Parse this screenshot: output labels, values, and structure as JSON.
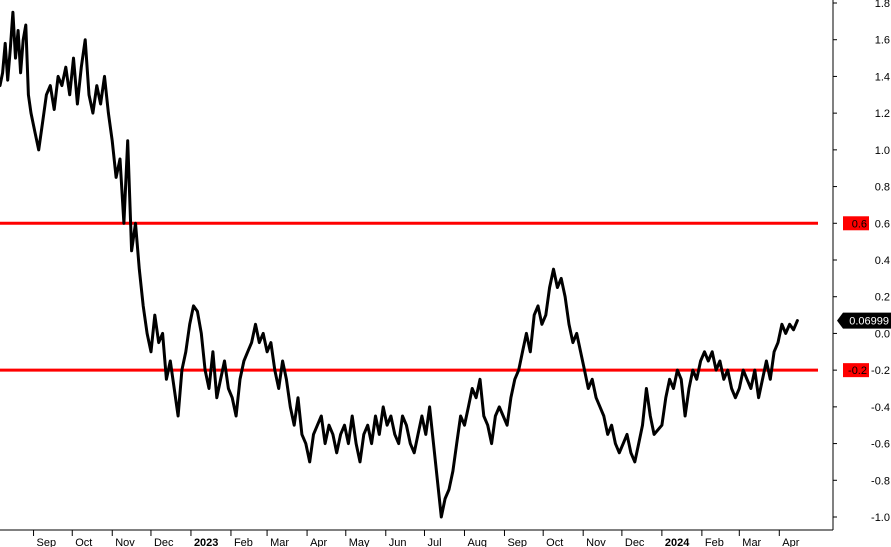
{
  "chart_data": {
    "type": "line",
    "title": "",
    "xlabel": "",
    "ylabel": "",
    "ylim": [
      -1.05,
      1.8
    ],
    "y_ticks": [
      "1.8",
      "1.6",
      "1.4",
      "1.2",
      "1.0",
      "0.8",
      "0.6",
      "0.4",
      "0.2",
      "0.0",
      "-0.2",
      "-0.4",
      "-0.6",
      "-0.8",
      "-1.0"
    ],
    "x_ticks": [
      {
        "label": "Sep",
        "date": "2022-09-01"
      },
      {
        "label": "Oct",
        "date": "2022-10-01"
      },
      {
        "label": "Nov",
        "date": "2022-11-01"
      },
      {
        "label": "Dec",
        "date": "2022-12-01"
      },
      {
        "label": "2023",
        "date": "2023-01-01",
        "year": true
      },
      {
        "label": "Feb",
        "date": "2023-02-01"
      },
      {
        "label": "Mar",
        "date": "2023-03-01"
      },
      {
        "label": "Apr",
        "date": "2023-04-01"
      },
      {
        "label": "May",
        "date": "2023-05-01"
      },
      {
        "label": "Jun",
        "date": "2023-06-01"
      },
      {
        "label": "Jul",
        "date": "2023-07-01"
      },
      {
        "label": "Aug",
        "date": "2023-08-01"
      },
      {
        "label": "Sep",
        "date": "2023-09-01"
      },
      {
        "label": "Oct",
        "date": "2023-10-01"
      },
      {
        "label": "Nov",
        "date": "2023-11-01"
      },
      {
        "label": "Dec",
        "date": "2023-12-01"
      },
      {
        "label": "2024",
        "date": "2024-01-01",
        "year": true
      },
      {
        "label": "Feb",
        "date": "2024-02-01"
      },
      {
        "label": "Mar",
        "date": "2024-03-01"
      },
      {
        "label": "Apr",
        "date": "2024-04-01"
      }
    ],
    "xlim": [
      "2022-08-06",
      "2024-05-01"
    ],
    "grid": false,
    "series_color": "#000000",
    "series": [
      {
        "data": [
          [
            "2022-08-06",
            1.35
          ],
          [
            "2022-08-08",
            1.42
          ],
          [
            "2022-08-10",
            1.58
          ],
          [
            "2022-08-12",
            1.38
          ],
          [
            "2022-08-14",
            1.55
          ],
          [
            "2022-08-16",
            1.75
          ],
          [
            "2022-08-18",
            1.5
          ],
          [
            "2022-08-20",
            1.65
          ],
          [
            "2022-08-22",
            1.42
          ],
          [
            "2022-08-24",
            1.6
          ],
          [
            "2022-08-26",
            1.68
          ],
          [
            "2022-08-28",
            1.3
          ],
          [
            "2022-08-30",
            1.2
          ],
          [
            "2022-09-02",
            1.1
          ],
          [
            "2022-09-05",
            1.0
          ],
          [
            "2022-09-08",
            1.15
          ],
          [
            "2022-09-11",
            1.3
          ],
          [
            "2022-09-14",
            1.35
          ],
          [
            "2022-09-17",
            1.22
          ],
          [
            "2022-09-20",
            1.4
          ],
          [
            "2022-09-23",
            1.35
          ],
          [
            "2022-09-26",
            1.45
          ],
          [
            "2022-09-29",
            1.3
          ],
          [
            "2022-10-02",
            1.5
          ],
          [
            "2022-10-05",
            1.25
          ],
          [
            "2022-10-08",
            1.45
          ],
          [
            "2022-10-11",
            1.6
          ],
          [
            "2022-10-14",
            1.3
          ],
          [
            "2022-10-17",
            1.2
          ],
          [
            "2022-10-20",
            1.35
          ],
          [
            "2022-10-23",
            1.25
          ],
          [
            "2022-10-26",
            1.4
          ],
          [
            "2022-10-29",
            1.2
          ],
          [
            "2022-11-01",
            1.05
          ],
          [
            "2022-11-04",
            0.85
          ],
          [
            "2022-11-07",
            0.95
          ],
          [
            "2022-11-10",
            0.6
          ],
          [
            "2022-11-13",
            1.05
          ],
          [
            "2022-11-16",
            0.45
          ],
          [
            "2022-11-19",
            0.6
          ],
          [
            "2022-11-22",
            0.35
          ],
          [
            "2022-11-25",
            0.15
          ],
          [
            "2022-11-28",
            0.0
          ],
          [
            "2022-12-01",
            -0.1
          ],
          [
            "2022-12-04",
            0.1
          ],
          [
            "2022-12-07",
            -0.05
          ],
          [
            "2022-12-10",
            0.0
          ],
          [
            "2022-12-13",
            -0.25
          ],
          [
            "2022-12-16",
            -0.15
          ],
          [
            "2022-12-19",
            -0.3
          ],
          [
            "2022-12-22",
            -0.45
          ],
          [
            "2022-12-25",
            -0.2
          ],
          [
            "2022-12-28",
            -0.1
          ],
          [
            "2022-12-31",
            0.05
          ],
          [
            "2023-01-03",
            0.15
          ],
          [
            "2023-01-06",
            0.12
          ],
          [
            "2023-01-09",
            0.0
          ],
          [
            "2023-01-12",
            -0.2
          ],
          [
            "2023-01-15",
            -0.3
          ],
          [
            "2023-01-18",
            -0.1
          ],
          [
            "2023-01-21",
            -0.35
          ],
          [
            "2023-01-24",
            -0.25
          ],
          [
            "2023-01-27",
            -0.15
          ],
          [
            "2023-01-30",
            -0.3
          ],
          [
            "2023-02-02",
            -0.35
          ],
          [
            "2023-02-05",
            -0.45
          ],
          [
            "2023-02-08",
            -0.25
          ],
          [
            "2023-02-11",
            -0.15
          ],
          [
            "2023-02-14",
            -0.1
          ],
          [
            "2023-02-17",
            -0.05
          ],
          [
            "2023-02-20",
            0.05
          ],
          [
            "2023-02-23",
            -0.05
          ],
          [
            "2023-02-26",
            0.0
          ],
          [
            "2023-03-01",
            -0.1
          ],
          [
            "2023-03-04",
            -0.05
          ],
          [
            "2023-03-07",
            -0.2
          ],
          [
            "2023-03-10",
            -0.3
          ],
          [
            "2023-03-13",
            -0.15
          ],
          [
            "2023-03-16",
            -0.25
          ],
          [
            "2023-03-19",
            -0.4
          ],
          [
            "2023-03-22",
            -0.5
          ],
          [
            "2023-03-25",
            -0.35
          ],
          [
            "2023-03-28",
            -0.55
          ],
          [
            "2023-03-31",
            -0.6
          ],
          [
            "2023-04-03",
            -0.7
          ],
          [
            "2023-04-06",
            -0.55
          ],
          [
            "2023-04-09",
            -0.5
          ],
          [
            "2023-04-12",
            -0.45
          ],
          [
            "2023-04-15",
            -0.6
          ],
          [
            "2023-04-18",
            -0.5
          ],
          [
            "2023-04-21",
            -0.55
          ],
          [
            "2023-04-24",
            -0.65
          ],
          [
            "2023-04-27",
            -0.55
          ],
          [
            "2023-04-30",
            -0.5
          ],
          [
            "2023-05-03",
            -0.6
          ],
          [
            "2023-05-06",
            -0.45
          ],
          [
            "2023-05-09",
            -0.6
          ],
          [
            "2023-05-12",
            -0.7
          ],
          [
            "2023-05-15",
            -0.55
          ],
          [
            "2023-05-18",
            -0.5
          ],
          [
            "2023-05-21",
            -0.6
          ],
          [
            "2023-05-24",
            -0.45
          ],
          [
            "2023-05-27",
            -0.55
          ],
          [
            "2023-05-30",
            -0.4
          ],
          [
            "2023-06-02",
            -0.5
          ],
          [
            "2023-06-05",
            -0.45
          ],
          [
            "2023-06-08",
            -0.55
          ],
          [
            "2023-06-11",
            -0.6
          ],
          [
            "2023-06-14",
            -0.45
          ],
          [
            "2023-06-17",
            -0.5
          ],
          [
            "2023-06-20",
            -0.6
          ],
          [
            "2023-06-23",
            -0.65
          ],
          [
            "2023-06-26",
            -0.55
          ],
          [
            "2023-06-29",
            -0.45
          ],
          [
            "2023-07-02",
            -0.55
          ],
          [
            "2023-07-05",
            -0.4
          ],
          [
            "2023-07-08",
            -0.6
          ],
          [
            "2023-07-11",
            -0.8
          ],
          [
            "2023-07-14",
            -1.0
          ],
          [
            "2023-07-17",
            -0.9
          ],
          [
            "2023-07-20",
            -0.85
          ],
          [
            "2023-07-23",
            -0.75
          ],
          [
            "2023-07-26",
            -0.6
          ],
          [
            "2023-07-29",
            -0.45
          ],
          [
            "2023-08-01",
            -0.5
          ],
          [
            "2023-08-04",
            -0.4
          ],
          [
            "2023-08-07",
            -0.3
          ],
          [
            "2023-08-10",
            -0.35
          ],
          [
            "2023-08-13",
            -0.25
          ],
          [
            "2023-08-16",
            -0.45
          ],
          [
            "2023-08-19",
            -0.5
          ],
          [
            "2023-08-22",
            -0.6
          ],
          [
            "2023-08-25",
            -0.45
          ],
          [
            "2023-08-28",
            -0.4
          ],
          [
            "2023-08-31",
            -0.45
          ],
          [
            "2023-09-03",
            -0.5
          ],
          [
            "2023-09-06",
            -0.35
          ],
          [
            "2023-09-09",
            -0.25
          ],
          [
            "2023-09-12",
            -0.2
          ],
          [
            "2023-09-15",
            -0.1
          ],
          [
            "2023-09-18",
            0.0
          ],
          [
            "2023-09-21",
            -0.1
          ],
          [
            "2023-09-24",
            0.1
          ],
          [
            "2023-09-27",
            0.15
          ],
          [
            "2023-09-30",
            0.05
          ],
          [
            "2023-10-03",
            0.1
          ],
          [
            "2023-10-06",
            0.25
          ],
          [
            "2023-10-09",
            0.35
          ],
          [
            "2023-10-12",
            0.25
          ],
          [
            "2023-10-15",
            0.3
          ],
          [
            "2023-10-18",
            0.2
          ],
          [
            "2023-10-21",
            0.05
          ],
          [
            "2023-10-24",
            -0.05
          ],
          [
            "2023-10-27",
            0.0
          ],
          [
            "2023-10-30",
            -0.1
          ],
          [
            "2023-11-02",
            -0.2
          ],
          [
            "2023-11-05",
            -0.3
          ],
          [
            "2023-11-08",
            -0.25
          ],
          [
            "2023-11-11",
            -0.35
          ],
          [
            "2023-11-14",
            -0.4
          ],
          [
            "2023-11-17",
            -0.45
          ],
          [
            "2023-11-20",
            -0.55
          ],
          [
            "2023-11-23",
            -0.5
          ],
          [
            "2023-11-26",
            -0.6
          ],
          [
            "2023-11-29",
            -0.65
          ],
          [
            "2023-12-02",
            -0.6
          ],
          [
            "2023-12-05",
            -0.55
          ],
          [
            "2023-12-08",
            -0.65
          ],
          [
            "2023-12-11",
            -0.7
          ],
          [
            "2023-12-14",
            -0.6
          ],
          [
            "2023-12-17",
            -0.5
          ],
          [
            "2023-12-20",
            -0.3
          ],
          [
            "2023-12-23",
            -0.45
          ],
          [
            "2023-12-26",
            -0.55
          ],
          [
            "2024-01-01",
            -0.5
          ],
          [
            "2024-01-04",
            -0.35
          ],
          [
            "2024-01-07",
            -0.25
          ],
          [
            "2024-01-10",
            -0.3
          ],
          [
            "2024-01-13",
            -0.2
          ],
          [
            "2024-01-16",
            -0.25
          ],
          [
            "2024-01-19",
            -0.45
          ],
          [
            "2024-01-22",
            -0.3
          ],
          [
            "2024-01-25",
            -0.2
          ],
          [
            "2024-01-28",
            -0.25
          ],
          [
            "2024-01-31",
            -0.15
          ],
          [
            "2024-02-03",
            -0.1
          ],
          [
            "2024-02-06",
            -0.15
          ],
          [
            "2024-02-09",
            -0.1
          ],
          [
            "2024-02-12",
            -0.2
          ],
          [
            "2024-02-15",
            -0.15
          ],
          [
            "2024-02-18",
            -0.25
          ],
          [
            "2024-02-21",
            -0.2
          ],
          [
            "2024-02-24",
            -0.3
          ],
          [
            "2024-02-27",
            -0.35
          ],
          [
            "2024-03-01",
            -0.3
          ],
          [
            "2024-03-04",
            -0.2
          ],
          [
            "2024-03-07",
            -0.25
          ],
          [
            "2024-03-10",
            -0.3
          ],
          [
            "2024-03-13",
            -0.2
          ],
          [
            "2024-03-16",
            -0.35
          ],
          [
            "2024-03-19",
            -0.25
          ],
          [
            "2024-03-22",
            -0.15
          ],
          [
            "2024-03-25",
            -0.25
          ],
          [
            "2024-03-28",
            -0.1
          ],
          [
            "2024-03-31",
            -0.05
          ],
          [
            "2024-04-03",
            0.05
          ],
          [
            "2024-04-06",
            0.0
          ],
          [
            "2024-04-09",
            0.05
          ],
          [
            "2024-04-12",
            0.02
          ],
          [
            "2024-04-15",
            0.06999
          ]
        ]
      }
    ],
    "reference_lines": [
      {
        "value": 0.6,
        "label": "0.6",
        "color": "#ff0000"
      },
      {
        "value": -0.2,
        "label": "-0.2",
        "color": "#ff0000"
      }
    ],
    "last_value": {
      "label": "0.06999",
      "value": 0.06999
    }
  }
}
